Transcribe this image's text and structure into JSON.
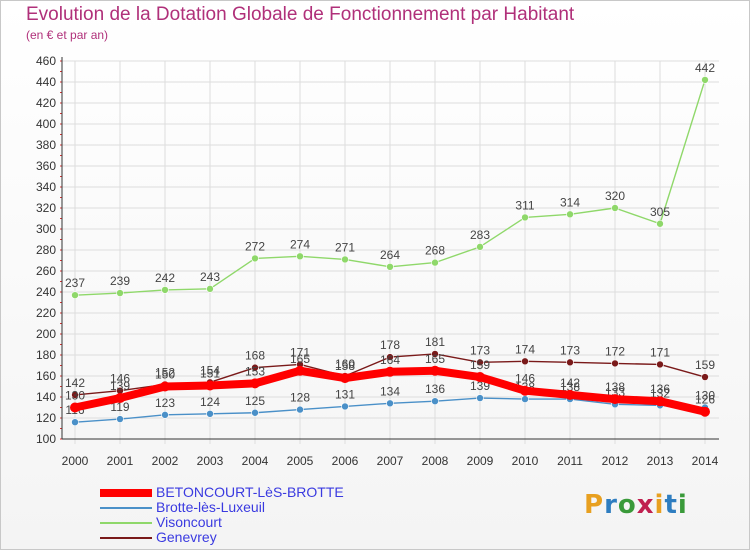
{
  "header": {
    "title": "Evolution de la Dotation Globale de Fonctionnement par Habitant",
    "subtitle": "(en € et par an)"
  },
  "logo": {
    "text": "Proxiti",
    "colors": [
      "#e8a020",
      "#2e7dc0",
      "#3a9a3a",
      "#c02050"
    ]
  },
  "chart_data": {
    "type": "line",
    "x": [
      2000,
      2001,
      2002,
      2003,
      2004,
      2005,
      2006,
      2007,
      2008,
      2009,
      2010,
      2011,
      2012,
      2013,
      2014
    ],
    "ylim": [
      100,
      460
    ],
    "yticks": [
      100,
      120,
      140,
      160,
      180,
      200,
      220,
      240,
      260,
      280,
      300,
      320,
      340,
      360,
      380,
      400,
      420,
      440,
      460
    ],
    "grid": true,
    "legend_position": "bottom-left",
    "series": [
      {
        "name": "Visoncourt",
        "color": "#8fd86a",
        "values": [
          237,
          239,
          242,
          243,
          272,
          274,
          271,
          264,
          268,
          283,
          311,
          314,
          320,
          305,
          442
        ]
      },
      {
        "name": "Genevrey",
        "color": "#7a1a1a",
        "values": [
          142,
          146,
          152,
          154,
          168,
          171,
          160,
          178,
          181,
          173,
          174,
          173,
          172,
          171,
          159
        ]
      },
      {
        "name": "Brotte-lès-Luxeuil",
        "color": "#4a90c8",
        "values": [
          116,
          119,
          123,
          124,
          125,
          128,
          131,
          134,
          136,
          139,
          138,
          138,
          133,
          132,
          130
        ]
      },
      {
        "name": "BETONCOURT-LèS-BROTTE",
        "color": "#ff0000",
        "values": [
          130,
          139,
          150,
          151,
          153,
          165,
          158,
          164,
          165,
          159,
          146,
          142,
          138,
          136,
          126
        ]
      }
    ]
  },
  "legend": {
    "items": [
      {
        "name": "BETONCOURT-LèS-BROTTE",
        "color": "#ff0000",
        "text_color": "#3a3ae0"
      },
      {
        "name": "Brotte-lès-Luxeuil",
        "color": "#4a90c8",
        "text_color": "#3a3ae0"
      },
      {
        "name": "Visoncourt",
        "color": "#8fd86a",
        "text_color": "#3a3ae0"
      },
      {
        "name": "Genevrey",
        "color": "#7a1a1a",
        "text_color": "#3a3ae0"
      }
    ]
  }
}
